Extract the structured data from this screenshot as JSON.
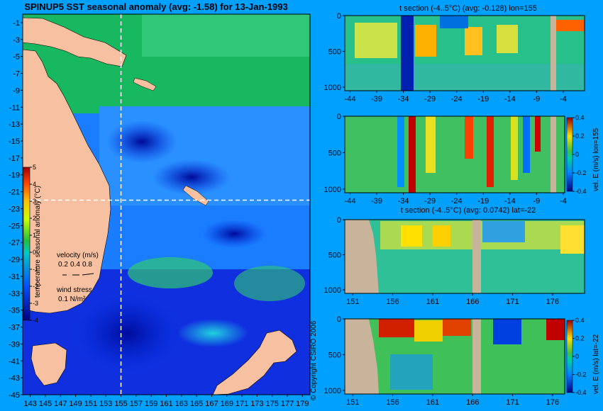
{
  "title": "SPINUP5 SST seasonal anomaly (avg: -1.58) for 13-Jan-1993",
  "copyright": "© Copyright CSIRO 2006",
  "colors": {
    "background": "#00a0ff",
    "land": "#d2b48c",
    "section_land": "#c8b49a"
  },
  "chart_data": [
    {
      "type": "heatmap",
      "title": "SPINUP5 SST seasonal anomaly (avg: -1.58) for 13-Jan-1993",
      "x_ticks": [
        143,
        145,
        147,
        149,
        151,
        153,
        155,
        157,
        159,
        161,
        163,
        165,
        167,
        169,
        171,
        173,
        175,
        177,
        179
      ],
      "y_ticks": [
        -1,
        -3,
        -5,
        -7,
        -9,
        -11,
        -13,
        -15,
        -17,
        -19,
        -21,
        -23,
        -25,
        -27,
        -29,
        -31,
        -33,
        -35,
        -37,
        -39,
        -41,
        -43,
        -45
      ],
      "xlim": [
        142,
        180
      ],
      "ylim": [
        -45,
        0
      ],
      "crosshair": {
        "lon": 155,
        "lat": -22
      },
      "colorbar": {
        "label": "temperature seasonal anomaly (°C)",
        "ticks": [
          5,
          4,
          3,
          2,
          1,
          0,
          -1,
          -2,
          -3,
          -4
        ],
        "range": [
          -4,
          5
        ]
      },
      "velocity_legend": {
        "label": "velocity (m/s)",
        "values": [
          "0.2",
          "0.4",
          "0.8"
        ]
      },
      "wind_legend": {
        "label": "wind stress",
        "value": "0.1 N/m²"
      }
    },
    {
      "type": "heatmap",
      "title": "t section (-4..5°C) (avg: -0.128) lon=155",
      "x_ticks": [
        -44,
        -39,
        -34,
        -29,
        -24,
        -19,
        -14,
        -9,
        -4
      ],
      "y_ticks": [
        0,
        500,
        1000
      ],
      "xlim": [
        -45,
        0
      ],
      "ylim": [
        1050,
        0
      ]
    },
    {
      "type": "heatmap",
      "title": "",
      "x_ticks": [
        -44,
        -39,
        -34,
        -29,
        -24,
        -19,
        -14,
        -9,
        -4
      ],
      "y_ticks": [
        0,
        500,
        1000
      ],
      "xlim": [
        -45,
        0
      ],
      "ylim": [
        1050,
        0
      ],
      "colorbar": {
        "label": "vel. E (m/s) lon=155",
        "ticks": [
          "0.4",
          "0.2",
          "0",
          "-0.2",
          "-0.4"
        ],
        "range": [
          -0.4,
          0.4
        ]
      }
    },
    {
      "type": "heatmap",
      "title": "t section (-4..5°C) (avg: 0.0742) lat=-22",
      "x_ticks": [
        151,
        156,
        161,
        166,
        171,
        176
      ],
      "y_ticks": [
        0,
        500,
        1000
      ],
      "xlim": [
        150,
        180
      ],
      "ylim": [
        1050,
        0
      ]
    },
    {
      "type": "heatmap",
      "title": "",
      "x_ticks": [
        151,
        156,
        161,
        166,
        171,
        176
      ],
      "y_ticks": [
        0,
        500,
        1000
      ],
      "xlim": [
        150,
        180
      ],
      "ylim": [
        1050,
        0
      ],
      "colorbar": {
        "label": "vel. E (m/s) lat=-22",
        "ticks": [
          "0.4",
          "0.2",
          "0",
          "-0.2",
          "-0.4"
        ],
        "range": [
          -0.4,
          0.4
        ]
      }
    }
  ]
}
